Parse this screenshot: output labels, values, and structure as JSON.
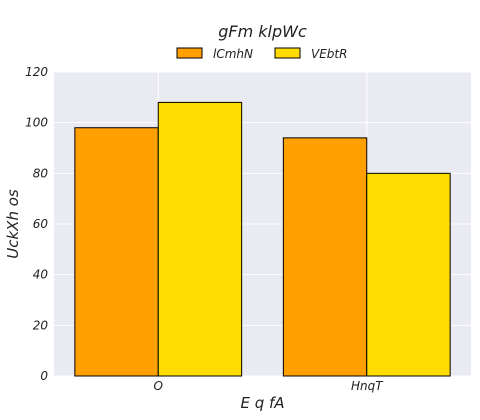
{
  "chart_data": {
    "type": "bar",
    "title": "gFm klpWc",
    "xlabel": "E q  fA",
    "ylabel": "UckXh os",
    "categories": [
      "O",
      "HnqT"
    ],
    "series": [
      {
        "name": "lCmhN",
        "values": [
          98,
          94
        ],
        "color": "#ffa000"
      },
      {
        "name": "VEbtR",
        "values": [
          108,
          80
        ],
        "color": "#ffdd00"
      }
    ],
    "ylim": [
      0,
      120
    ],
    "yticks": [
      0,
      20,
      40,
      60,
      80,
      100,
      120
    ],
    "grid": true,
    "legend_position": "top-center",
    "plot_background": "#eaeaf2",
    "grid_color": "#ffffff",
    "bar_edge_color": "#000000"
  }
}
